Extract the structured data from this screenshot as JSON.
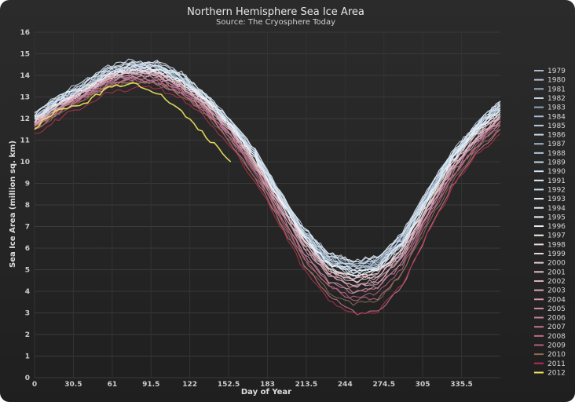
{
  "chart_data": {
    "type": "line",
    "title": "Northern Hemisphere Sea Ice Area",
    "subtitle": "Source: The Cryosphere Today",
    "xlabel": "Day of Year",
    "ylabel": "Sea Ice Area (million sq. km)",
    "x_ticks": [
      0,
      30.5,
      61,
      91.5,
      122,
      152.5,
      183,
      213.5,
      244,
      274.5,
      305,
      335.5
    ],
    "x_tick_labels": [
      "0",
      "30.5",
      "61",
      "91.5",
      "122",
      "152.5",
      "183",
      "213.5",
      "244",
      "274.5",
      "305",
      "335.5"
    ],
    "xlim": [
      0,
      366
    ],
    "y_ticks": [
      0,
      1,
      2,
      3,
      4,
      5,
      6,
      7,
      8,
      9,
      10,
      11,
      12,
      13,
      14,
      15,
      16
    ],
    "ylim": [
      0,
      16
    ],
    "grid": true,
    "legend_position": "right",
    "series": [
      {
        "name": "1979",
        "color": "#a9b9cf",
        "values": [
          11.9,
          12.7,
          13.3,
          14.0,
          14.2,
          14.3,
          13.8,
          12.9,
          11.7,
          10.3,
          8.4,
          6.7,
          5.6,
          5.2,
          5.4,
          6.5,
          8.4,
          10.2,
          11.5,
          12.5
        ]
      },
      {
        "name": "1980",
        "color": "#b4c3d6",
        "values": [
          12.1,
          12.9,
          13.5,
          14.2,
          14.4,
          14.4,
          13.9,
          12.9,
          11.8,
          10.4,
          8.5,
          6.8,
          5.7,
          5.3,
          5.5,
          6.6,
          8.5,
          10.3,
          11.6,
          12.6
        ]
      },
      {
        "name": "1981",
        "color": "#98a9c0",
        "values": [
          11.8,
          12.6,
          13.3,
          13.9,
          14.2,
          14.2,
          13.7,
          12.8,
          11.6,
          10.2,
          8.3,
          6.6,
          5.5,
          5.1,
          5.3,
          6.4,
          8.3,
          10.1,
          11.4,
          12.4
        ]
      },
      {
        "name": "1982",
        "color": "#c3d1e2",
        "values": [
          12.2,
          13.0,
          13.6,
          14.3,
          14.6,
          14.5,
          14.0,
          13.1,
          11.9,
          10.5,
          8.6,
          6.9,
          5.8,
          5.4,
          5.6,
          6.7,
          8.6,
          10.4,
          11.7,
          12.8
        ]
      },
      {
        "name": "1983",
        "color": "#8fa5bd",
        "values": [
          12.0,
          12.8,
          13.4,
          14.1,
          14.3,
          14.3,
          13.8,
          12.9,
          11.7,
          10.3,
          8.4,
          6.7,
          5.6,
          5.2,
          5.4,
          6.5,
          8.4,
          10.2,
          11.5,
          12.6
        ]
      },
      {
        "name": "1984",
        "color": "#a5bcd4",
        "values": [
          11.9,
          12.7,
          13.3,
          14.0,
          14.3,
          14.2,
          13.7,
          12.8,
          11.6,
          10.2,
          8.3,
          6.5,
          5.3,
          4.9,
          5.1,
          6.2,
          8.2,
          10.0,
          11.4,
          12.4
        ]
      },
      {
        "name": "1985",
        "color": "#b9cde0",
        "values": [
          12.1,
          12.9,
          13.5,
          14.2,
          14.5,
          14.4,
          13.9,
          13.0,
          11.8,
          10.4,
          8.5,
          6.7,
          5.5,
          5.0,
          5.3,
          6.4,
          8.4,
          10.2,
          11.6,
          12.7
        ]
      },
      {
        "name": "1986",
        "color": "#cfdfee",
        "values": [
          12.3,
          13.1,
          13.7,
          14.4,
          14.7,
          14.6,
          14.1,
          13.1,
          11.9,
          10.5,
          8.6,
          6.9,
          5.7,
          5.3,
          5.5,
          6.6,
          8.6,
          10.4,
          11.7,
          12.8
        ]
      },
      {
        "name": "1987",
        "color": "#9fb4ca",
        "values": [
          12.0,
          12.8,
          13.4,
          14.1,
          14.4,
          14.3,
          13.8,
          12.9,
          11.7,
          10.3,
          8.4,
          6.6,
          5.4,
          5.0,
          5.2,
          6.3,
          8.3,
          10.1,
          11.5,
          12.5
        ]
      },
      {
        "name": "1988",
        "color": "#b2c7dc",
        "values": [
          12.1,
          12.9,
          13.5,
          14.2,
          14.4,
          14.4,
          13.9,
          12.9,
          11.7,
          10.3,
          8.4,
          6.7,
          5.5,
          5.1,
          5.3,
          6.4,
          8.4,
          10.2,
          11.5,
          12.6
        ]
      },
      {
        "name": "1989",
        "color": "#c5d8ea",
        "values": [
          11.8,
          12.6,
          13.2,
          13.9,
          14.2,
          14.2,
          13.7,
          12.8,
          11.6,
          10.2,
          8.3,
          6.5,
          5.3,
          4.9,
          5.1,
          6.2,
          8.2,
          10.0,
          11.4,
          12.4
        ]
      },
      {
        "name": "1990",
        "color": "#d7e6f3",
        "values": [
          12.2,
          13.0,
          13.6,
          14.3,
          14.6,
          14.5,
          14.0,
          13.0,
          11.8,
          10.4,
          8.4,
          6.6,
          5.3,
          4.8,
          5.0,
          6.2,
          8.3,
          10.2,
          11.6,
          12.7
        ]
      },
      {
        "name": "1991",
        "color": "#e3eef8",
        "values": [
          12.0,
          12.8,
          13.4,
          14.1,
          14.4,
          14.4,
          13.9,
          12.9,
          11.7,
          10.3,
          8.3,
          6.5,
          5.3,
          4.8,
          5.1,
          6.2,
          8.2,
          10.1,
          11.5,
          12.5
        ]
      },
      {
        "name": "1992",
        "color": "#cde0ef",
        "values": [
          12.1,
          12.9,
          13.5,
          14.2,
          14.5,
          14.4,
          13.9,
          13.0,
          11.8,
          10.4,
          8.5,
          6.7,
          5.6,
          5.2,
          5.4,
          6.5,
          8.5,
          10.3,
          11.6,
          12.7
        ]
      },
      {
        "name": "1993",
        "color": "#eaf3fb",
        "values": [
          11.9,
          12.7,
          13.3,
          14.0,
          14.3,
          14.3,
          13.8,
          12.9,
          11.7,
          10.2,
          8.3,
          6.5,
          5.3,
          4.9,
          5.1,
          6.2,
          8.2,
          10.1,
          11.4,
          12.5
        ]
      },
      {
        "name": "1994",
        "color": "#dfeaf4",
        "values": [
          12.0,
          12.8,
          13.4,
          14.1,
          14.4,
          14.3,
          13.8,
          12.9,
          11.7,
          10.3,
          8.4,
          6.6,
          5.4,
          5.0,
          5.2,
          6.3,
          8.3,
          10.1,
          11.5,
          12.6
        ]
      },
      {
        "name": "1995",
        "color": "#f1f6fb",
        "values": [
          11.9,
          12.7,
          13.3,
          14.0,
          14.2,
          14.2,
          13.7,
          12.8,
          11.6,
          10.1,
          8.2,
          6.4,
          5.2,
          4.7,
          4.9,
          6.0,
          8.1,
          10.0,
          11.4,
          12.4
        ]
      },
      {
        "name": "1996",
        "color": "#e7eef5",
        "values": [
          12.2,
          13.0,
          13.6,
          14.3,
          14.6,
          14.6,
          14.1,
          13.1,
          11.9,
          10.5,
          8.6,
          6.9,
          5.8,
          5.4,
          5.6,
          6.7,
          8.6,
          10.4,
          11.7,
          12.8
        ]
      },
      {
        "name": "1997",
        "color": "#f7f2f3",
        "values": [
          11.9,
          12.7,
          13.3,
          14.0,
          14.3,
          14.2,
          13.7,
          12.8,
          11.6,
          10.1,
          8.2,
          6.4,
          5.1,
          4.7,
          4.9,
          6.0,
          8.0,
          9.9,
          11.3,
          12.3
        ]
      },
      {
        "name": "1998",
        "color": "#f2dde2",
        "values": [
          11.8,
          12.6,
          13.2,
          13.9,
          14.2,
          14.1,
          13.6,
          12.7,
          11.5,
          10.0,
          8.1,
          6.3,
          5.0,
          4.6,
          4.8,
          5.9,
          7.9,
          9.8,
          11.2,
          12.2
        ]
      },
      {
        "name": "1999",
        "color": "#eed2da",
        "values": [
          11.9,
          12.7,
          13.3,
          14.0,
          14.2,
          14.1,
          13.6,
          12.7,
          11.5,
          10.0,
          8.1,
          6.3,
          5.0,
          4.5,
          4.7,
          5.8,
          7.8,
          9.7,
          11.1,
          12.1
        ]
      },
      {
        "name": "2000",
        "color": "#e8c7d1",
        "values": [
          11.7,
          12.5,
          13.1,
          13.8,
          14.1,
          14.0,
          13.5,
          12.6,
          11.4,
          9.9,
          8.0,
          6.2,
          4.9,
          4.4,
          4.6,
          5.8,
          7.8,
          9.7,
          11.1,
          12.1
        ]
      },
      {
        "name": "2001",
        "color": "#e3bcc8",
        "values": [
          11.8,
          12.6,
          13.2,
          13.9,
          14.1,
          14.1,
          13.6,
          12.7,
          11.5,
          10.0,
          8.1,
          6.3,
          5.0,
          4.6,
          4.8,
          5.9,
          7.9,
          9.8,
          11.2,
          12.2
        ]
      },
      {
        "name": "2002",
        "color": "#deb1bf",
        "values": [
          11.7,
          12.5,
          13.1,
          13.8,
          14.0,
          14.0,
          13.5,
          12.5,
          11.3,
          9.8,
          7.8,
          6.0,
          4.7,
          4.2,
          4.4,
          5.6,
          7.7,
          9.6,
          11.0,
          12.0
        ]
      },
      {
        "name": "2003",
        "color": "#d9a6b6",
        "values": [
          11.8,
          12.6,
          13.2,
          13.9,
          14.1,
          14.0,
          13.5,
          12.6,
          11.4,
          9.9,
          7.9,
          6.1,
          4.8,
          4.3,
          4.5,
          5.7,
          7.7,
          9.6,
          11.0,
          12.0
        ]
      },
      {
        "name": "2004",
        "color": "#d39bad",
        "values": [
          11.7,
          12.5,
          13.1,
          13.8,
          14.0,
          13.9,
          13.4,
          12.5,
          11.3,
          9.8,
          7.8,
          6.0,
          4.7,
          4.2,
          4.4,
          5.6,
          7.6,
          9.5,
          10.9,
          11.9
        ]
      },
      {
        "name": "2005",
        "color": "#cd8fa3",
        "values": [
          11.6,
          12.4,
          13.0,
          13.6,
          13.9,
          13.8,
          13.3,
          12.4,
          11.2,
          9.7,
          7.7,
          5.8,
          4.5,
          4.0,
          4.2,
          5.4,
          7.5,
          9.4,
          10.9,
          11.9
        ]
      },
      {
        "name": "2006",
        "color": "#c7849a",
        "values": [
          11.5,
          12.3,
          12.9,
          13.5,
          13.7,
          13.6,
          13.2,
          12.3,
          11.1,
          9.6,
          7.6,
          5.7,
          4.4,
          3.9,
          4.1,
          5.3,
          7.4,
          9.3,
          10.7,
          11.7
        ]
      },
      {
        "name": "2007",
        "color": "#c07890",
        "values": [
          11.6,
          12.4,
          13.0,
          13.6,
          13.8,
          13.7,
          13.2,
          12.2,
          10.9,
          9.3,
          7.2,
          5.2,
          3.8,
          3.0,
          3.1,
          4.2,
          6.6,
          8.8,
          10.4,
          11.5
        ]
      },
      {
        "name": "2008",
        "color": "#b96d87",
        "values": [
          11.6,
          12.4,
          13.0,
          13.7,
          13.9,
          13.8,
          13.3,
          12.4,
          11.2,
          9.6,
          7.5,
          5.5,
          4.2,
          3.6,
          3.7,
          4.9,
          7.2,
          9.2,
          10.7,
          11.8
        ]
      },
      {
        "name": "2009",
        "color": "#b1617d",
        "values": [
          11.5,
          12.3,
          12.9,
          13.6,
          13.8,
          13.7,
          13.2,
          12.3,
          11.1,
          9.5,
          7.5,
          5.5,
          4.2,
          3.7,
          3.9,
          5.1,
          7.3,
          9.2,
          10.7,
          11.7
        ]
      },
      {
        "name": "2010",
        "color": "#8b6b52",
        "values": [
          11.4,
          12.2,
          12.8,
          13.5,
          13.7,
          13.6,
          13.1,
          12.2,
          10.9,
          9.3,
          7.3,
          5.3,
          4.0,
          3.4,
          3.6,
          4.8,
          7.0,
          9.0,
          10.5,
          11.5
        ]
      },
      {
        "name": "2011",
        "color": "#b5304f",
        "values": [
          11.2,
          12.0,
          12.6,
          13.2,
          13.4,
          13.4,
          12.9,
          12.0,
          10.7,
          9.1,
          7.1,
          5.0,
          3.6,
          3.0,
          3.1,
          4.3,
          6.6,
          8.7,
          10.3,
          11.3
        ]
      },
      {
        "name": "2012",
        "color": "#f2e85a",
        "values": [
          11.6,
          12.4,
          12.7,
          13.4,
          13.7,
          13.2,
          12.3,
          11.2,
          10.0,
          null,
          null,
          null,
          null,
          null,
          null,
          null,
          null,
          null,
          null,
          null
        ]
      }
    ]
  }
}
